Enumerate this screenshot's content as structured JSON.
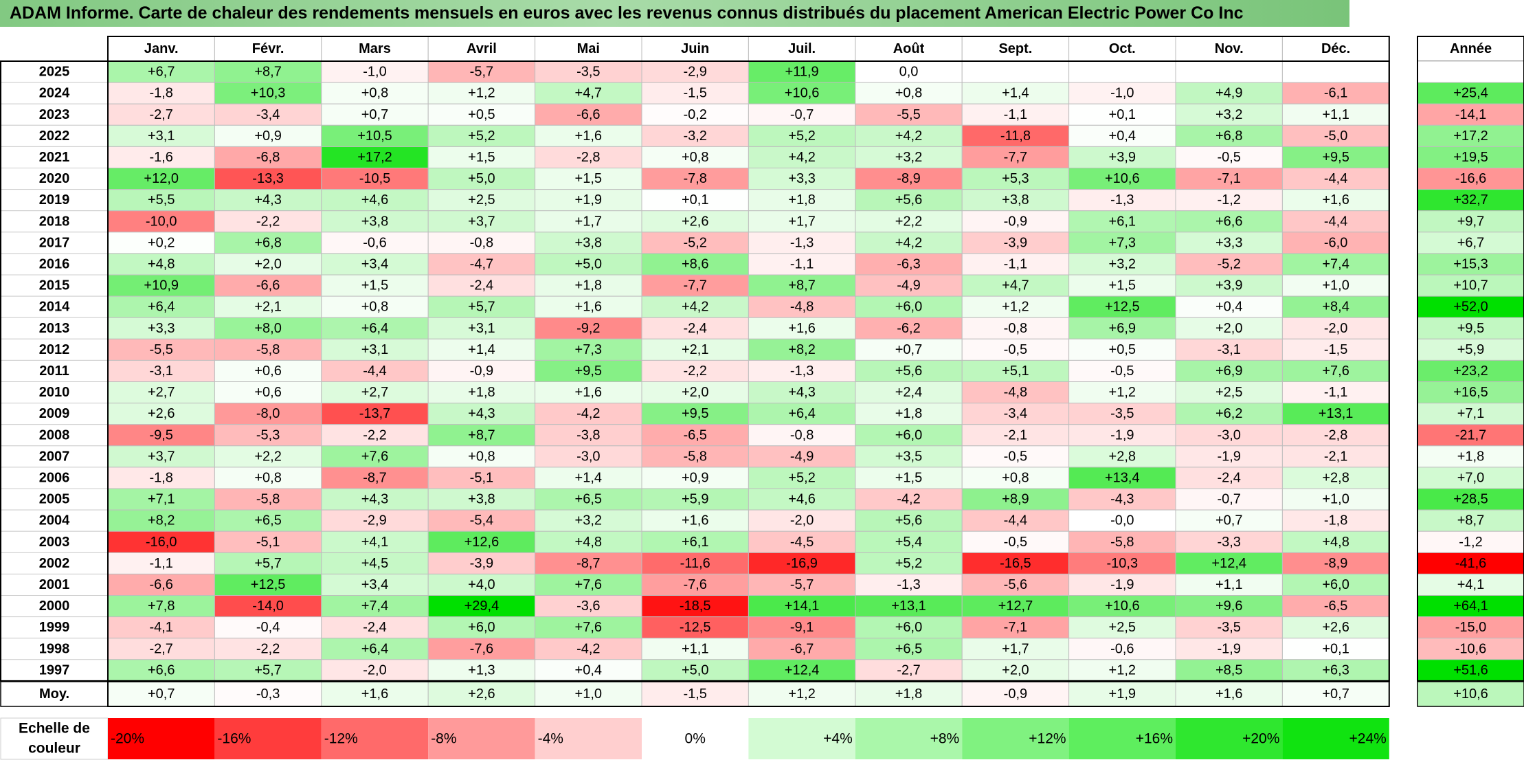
{
  "title": "ADAM Informe. Carte de chaleur des rendements mensuels en euros avec les revenus connus distribués du placement American Electric Power Co Inc",
  "chart_data": {
    "type": "heatmap",
    "title": "ADAM Informe. Carte de chaleur des rendements mensuels en euros avec les revenus connus distribués du placement American Electric Power Co Inc",
    "columns": [
      "Janv.",
      "Févr.",
      "Mars",
      "Avril",
      "Mai",
      "Juin",
      "Juil.",
      "Août",
      "Sept.",
      "Oct.",
      "Nov.",
      "Déc."
    ],
    "year_header": "Année",
    "rows": [
      {
        "year": "2025",
        "months": [
          "+6,7",
          "+8,7",
          "-1,0",
          "-5,7",
          "-3,5",
          "-2,9",
          "+11,9",
          "0,0",
          "",
          "",
          "",
          ""
        ],
        "annual": ""
      },
      {
        "year": "2024",
        "months": [
          "-1,8",
          "+10,3",
          "+0,8",
          "+1,2",
          "+4,7",
          "-1,5",
          "+10,6",
          "+0,8",
          "+1,4",
          "-1,0",
          "+4,9",
          "-6,1"
        ],
        "annual": "+25,4"
      },
      {
        "year": "2023",
        "months": [
          "-2,7",
          "-3,4",
          "+0,7",
          "+0,5",
          "-6,6",
          "-0,2",
          "-0,7",
          "-5,5",
          "-1,1",
          "+0,1",
          "+3,2",
          "+1,1"
        ],
        "annual": "-14,1"
      },
      {
        "year": "2022",
        "months": [
          "+3,1",
          "+0,9",
          "+10,5",
          "+5,2",
          "+1,6",
          "-3,2",
          "+5,2",
          "+4,2",
          "-11,8",
          "+0,4",
          "+6,8",
          "-5,0"
        ],
        "annual": "+17,2"
      },
      {
        "year": "2021",
        "months": [
          "-1,6",
          "-6,8",
          "+17,2",
          "+1,5",
          "-2,8",
          "+0,8",
          "+4,2",
          "+3,2",
          "-7,7",
          "+3,9",
          "-0,5",
          "+9,5"
        ],
        "annual": "+19,5"
      },
      {
        "year": "2020",
        "months": [
          "+12,0",
          "-13,3",
          "-10,5",
          "+5,0",
          "+1,5",
          "-7,8",
          "+3,3",
          "-8,9",
          "+5,3",
          "+10,6",
          "-7,1",
          "-4,4"
        ],
        "annual": "-16,6"
      },
      {
        "year": "2019",
        "months": [
          "+5,5",
          "+4,3",
          "+4,6",
          "+2,5",
          "+1,9",
          "+0,1",
          "+1,8",
          "+5,6",
          "+3,8",
          "-1,3",
          "-1,2",
          "+1,6"
        ],
        "annual": "+32,7"
      },
      {
        "year": "2018",
        "months": [
          "-10,0",
          "-2,2",
          "+3,8",
          "+3,7",
          "+1,7",
          "+2,6",
          "+1,7",
          "+2,2",
          "-0,9",
          "+6,1",
          "+6,6",
          "-4,4"
        ],
        "annual": "+9,7"
      },
      {
        "year": "2017",
        "months": [
          "+0,2",
          "+6,8",
          "-0,6",
          "-0,8",
          "+3,8",
          "-5,2",
          "-1,3",
          "+4,2",
          "-3,9",
          "+7,3",
          "+3,3",
          "-6,0"
        ],
        "annual": "+6,7"
      },
      {
        "year": "2016",
        "months": [
          "+4,8",
          "+2,0",
          "+3,4",
          "-4,7",
          "+5,0",
          "+8,6",
          "-1,1",
          "-6,3",
          "-1,1",
          "+3,2",
          "-5,2",
          "+7,4"
        ],
        "annual": "+15,3"
      },
      {
        "year": "2015",
        "months": [
          "+10,9",
          "-6,6",
          "+1,5",
          "-2,4",
          "+1,8",
          "-7,7",
          "+8,7",
          "-4,9",
          "+4,7",
          "+1,5",
          "+3,9",
          "+1,0"
        ],
        "annual": "+10,7"
      },
      {
        "year": "2014",
        "months": [
          "+6,4",
          "+2,1",
          "+0,8",
          "+5,7",
          "+1,6",
          "+4,2",
          "-4,8",
          "+6,0",
          "+1,2",
          "+12,5",
          "+0,4",
          "+8,4"
        ],
        "annual": "+52,0"
      },
      {
        "year": "2013",
        "months": [
          "+3,3",
          "+8,0",
          "+6,4",
          "+3,1",
          "-9,2",
          "-2,4",
          "+1,6",
          "-6,2",
          "-0,8",
          "+6,9",
          "+2,0",
          "-2,0"
        ],
        "annual": "+9,5"
      },
      {
        "year": "2012",
        "months": [
          "-5,5",
          "-5,8",
          "+3,1",
          "+1,4",
          "+7,3",
          "+2,1",
          "+8,2",
          "+0,7",
          "-0,5",
          "+0,5",
          "-3,1",
          "-1,5"
        ],
        "annual": "+5,9"
      },
      {
        "year": "2011",
        "months": [
          "-3,1",
          "+0,6",
          "-4,4",
          "-0,9",
          "+9,5",
          "-2,2",
          "-1,3",
          "+5,6",
          "+5,1",
          "-0,5",
          "+6,9",
          "+7,6"
        ],
        "annual": "+23,2"
      },
      {
        "year": "2010",
        "months": [
          "+2,7",
          "+0,6",
          "+2,7",
          "+1,8",
          "+1,6",
          "+2,0",
          "+4,3",
          "+2,4",
          "-4,8",
          "+1,2",
          "+2,5",
          "-1,1"
        ],
        "annual": "+16,5"
      },
      {
        "year": "2009",
        "months": [
          "+2,6",
          "-8,0",
          "-13,7",
          "+4,3",
          "-4,2",
          "+9,5",
          "+6,4",
          "+1,8",
          "-3,4",
          "-3,5",
          "+6,2",
          "+13,1"
        ],
        "annual": "+7,1"
      },
      {
        "year": "2008",
        "months": [
          "-9,5",
          "-5,3",
          "-2,2",
          "+8,7",
          "-3,8",
          "-6,5",
          "-0,8",
          "+6,0",
          "-2,1",
          "-1,9",
          "-3,0",
          "-2,8"
        ],
        "annual": "-21,7"
      },
      {
        "year": "2007",
        "months": [
          "+3,7",
          "+2,2",
          "+7,6",
          "+0,8",
          "-3,0",
          "-5,8",
          "-4,9",
          "+3,5",
          "-0,5",
          "+2,8",
          "-1,9",
          "-2,1"
        ],
        "annual": "+1,8"
      },
      {
        "year": "2006",
        "months": [
          "-1,8",
          "+0,8",
          "-8,7",
          "-5,1",
          "+1,4",
          "+0,9",
          "+5,2",
          "+1,5",
          "+0,8",
          "+13,4",
          "-2,4",
          "+2,8"
        ],
        "annual": "+7,0"
      },
      {
        "year": "2005",
        "months": [
          "+7,1",
          "-5,8",
          "+4,3",
          "+3,8",
          "+6,5",
          "+5,9",
          "+4,6",
          "-4,2",
          "+8,9",
          "-4,3",
          "-0,7",
          "+1,0"
        ],
        "annual": "+28,5"
      },
      {
        "year": "2004",
        "months": [
          "+8,2",
          "+6,5",
          "-2,9",
          "-5,4",
          "+3,2",
          "+1,6",
          "-2,0",
          "+5,6",
          "-4,4",
          "-0,0",
          "+0,7",
          "-1,8"
        ],
        "annual": "+8,7"
      },
      {
        "year": "2003",
        "months": [
          "-16,0",
          "-5,1",
          "+4,1",
          "+12,6",
          "+4,8",
          "+6,1",
          "-4,5",
          "+5,4",
          "-0,5",
          "-5,8",
          "-3,3",
          "+4,8"
        ],
        "annual": "-1,2"
      },
      {
        "year": "2002",
        "months": [
          "-1,1",
          "+5,7",
          "+4,5",
          "-3,9",
          "-8,7",
          "-11,6",
          "-16,9",
          "+5,2",
          "-16,5",
          "-10,3",
          "+12,4",
          "-8,9"
        ],
        "annual": "-41,6"
      },
      {
        "year": "2001",
        "months": [
          "-6,6",
          "+12,5",
          "+3,4",
          "+4,0",
          "+7,6",
          "-7,6",
          "-5,7",
          "-1,3",
          "-5,6",
          "-1,9",
          "+1,1",
          "+6,0"
        ],
        "annual": "+4,1"
      },
      {
        "year": "2000",
        "months": [
          "+7,8",
          "-14,0",
          "+7,4",
          "+29,4",
          "-3,6",
          "-18,5",
          "+14,1",
          "+13,1",
          "+12,7",
          "+10,6",
          "+9,6",
          "-6,5"
        ],
        "annual": "+64,1"
      },
      {
        "year": "1999",
        "months": [
          "-4,1",
          "-0,4",
          "-2,4",
          "+6,0",
          "+7,6",
          "-12,5",
          "-9,1",
          "+6,0",
          "-7,1",
          "+2,5",
          "-3,5",
          "+2,6"
        ],
        "annual": "-15,0"
      },
      {
        "year": "1998",
        "months": [
          "-2,7",
          "-2,2",
          "+6,4",
          "-7,6",
          "-4,2",
          "+1,1",
          "-6,7",
          "+6,5",
          "+1,7",
          "-0,6",
          "-1,9",
          "+0,1"
        ],
        "annual": "-10,6"
      },
      {
        "year": "1997",
        "months": [
          "+6,6",
          "+5,7",
          "-2,0",
          "+1,3",
          "+0,4",
          "+5,0",
          "+12,4",
          "-2,7",
          "+2,0",
          "+1,2",
          "+8,5",
          "+6,3"
        ],
        "annual": "+51,6"
      }
    ],
    "average": {
      "label": "Moy.",
      "months": [
        "+0,7",
        "-0,3",
        "+1,6",
        "+2,6",
        "+1,0",
        "-1,5",
        "+1,2",
        "+1,8",
        "-0,9",
        "+1,9",
        "+1,6",
        "+0,7"
      ],
      "annual": "+10,6"
    },
    "color_scale": {
      "label_line1": "Echelle de",
      "label_line2": "couleur",
      "stops": [
        "-20%",
        "-16%",
        "-12%",
        "-8%",
        "-4%",
        "0%",
        "+4%",
        "+8%",
        "+12%",
        "+16%",
        "+20%",
        "+24%"
      ],
      "stop_values": [
        -20,
        -16,
        -12,
        -8,
        -4,
        0,
        4,
        8,
        12,
        16,
        20,
        24
      ],
      "stop_colors": [
        "#ff0000",
        "#ff3c3c",
        "#ff6a6a",
        "#ff9a9a",
        "#ffcfcf",
        "#ffffff",
        "#d3fbd3",
        "#aaf7aa",
        "#80f280",
        "#5eee5e",
        "#2fe72f",
        "#10e310"
      ],
      "negative_color": "#ff0000",
      "positive_color": "#00e000",
      "neutral_color": "#ffffff"
    }
  }
}
